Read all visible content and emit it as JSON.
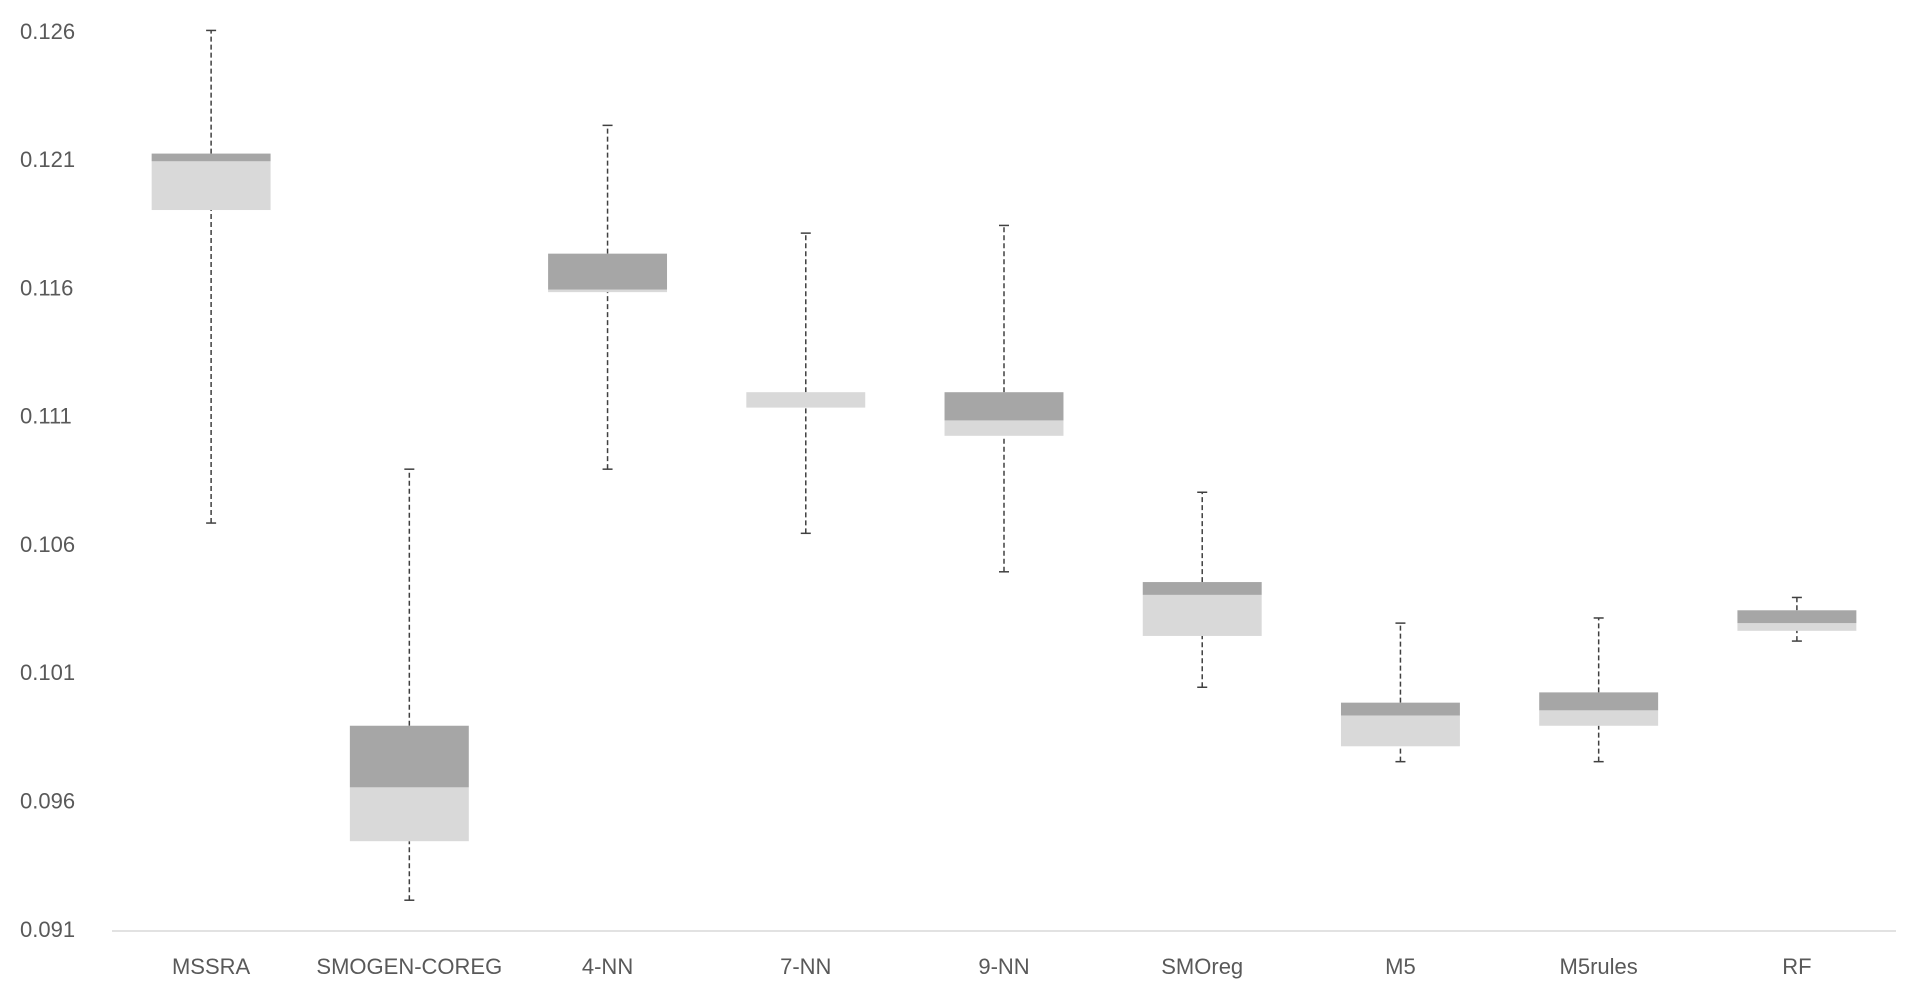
{
  "chart_data": {
    "type": "box",
    "categories": [
      "MSSRA",
      "SMOGEN-COREG",
      "4-NN",
      "7-NN",
      "9-NN",
      "SMOreg",
      "M5",
      "M5rules",
      "RF"
    ],
    "min": [
      0.1069,
      0.0922,
      0.109,
      0.1065,
      0.105,
      0.1005,
      0.0976,
      0.0976,
      0.1023
    ],
    "q1": [
      0.1191,
      0.0945,
      0.1159,
      0.1114,
      0.1103,
      0.1025,
      0.0982,
      0.099,
      0.1027
    ],
    "median": [
      0.121,
      0.0966,
      0.116,
      0.112,
      0.1109,
      0.1041,
      0.0994,
      0.0996,
      0.103
    ],
    "q3": [
      0.1213,
      0.099,
      0.1174,
      0.112,
      0.112,
      0.1046,
      0.0999,
      0.1003,
      0.1035
    ],
    "max": [
      0.1261,
      0.109,
      0.1224,
      0.1182,
      0.1185,
      0.1081,
      0.103,
      0.1032,
      0.104
    ],
    "colors": {
      "lower": "#d9d9d9",
      "upper": "#a6a6a6",
      "whisker": "#404040"
    },
    "ylim": [
      0.091,
      0.126
    ],
    "yticks": [
      0.091,
      0.096,
      0.101,
      0.106,
      0.111,
      0.116,
      0.121,
      0.126
    ],
    "grid": false
  }
}
